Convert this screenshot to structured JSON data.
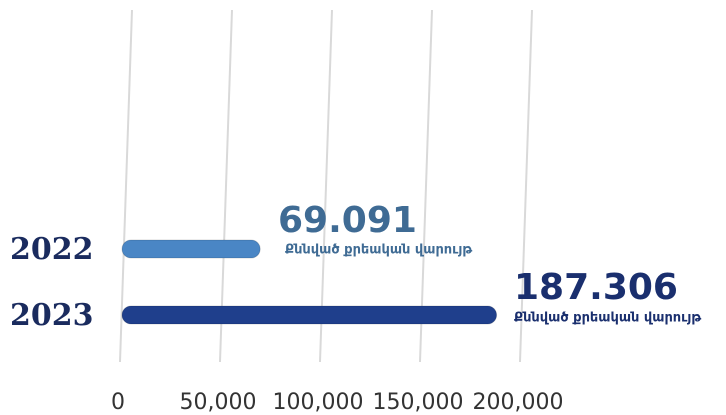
{
  "chart_data": {
    "type": "bar",
    "orientation": "horizontal",
    "categories": [
      "2022",
      "2023"
    ],
    "values": [
      69091,
      187306
    ],
    "value_labels": [
      "69.091",
      "187.306"
    ],
    "annotations": [
      "Քննված քրեական վարույթ",
      "Քննված քրեական վարույթ"
    ],
    "colors": [
      "#4a86c5",
      "#1f3f8c"
    ],
    "label_colors": [
      "#3f6b94",
      "#1a2f6e"
    ],
    "xlim": [
      0,
      200000
    ],
    "xticks": [
      0,
      {
        "value": 50000,
        "label": "50,000"
      },
      {
        "value": 100000,
        "label": "100,000"
      },
      {
        "value": 150000,
        "label": "150,000"
      },
      {
        "value": 200000,
        "label": "200,000"
      }
    ],
    "grid": true
  }
}
